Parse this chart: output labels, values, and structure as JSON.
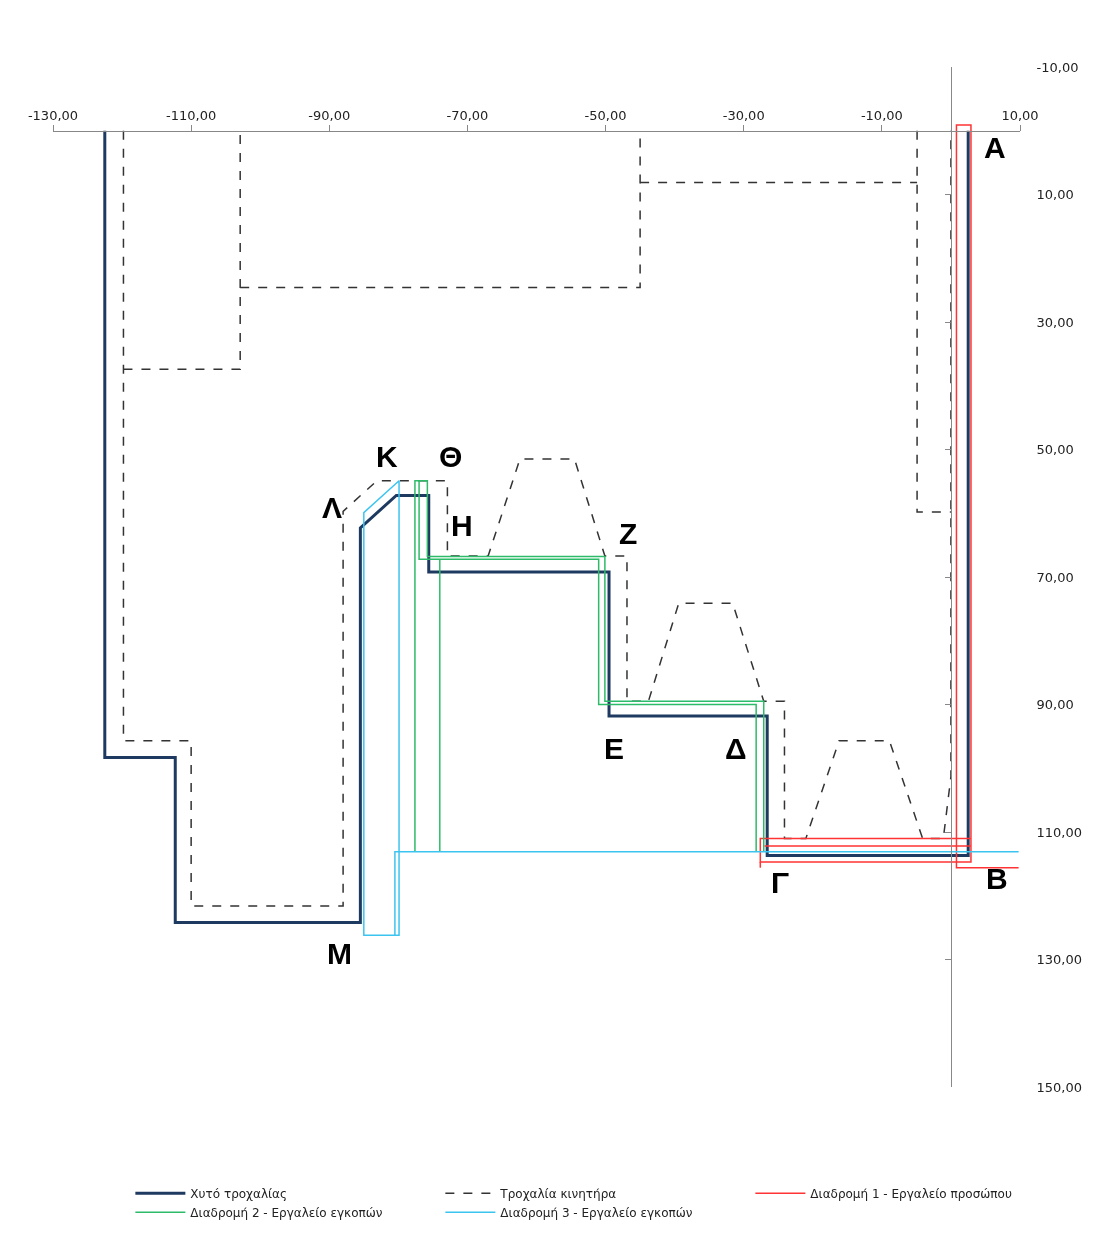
{
  "chart_data": {
    "type": "line",
    "marker": "none",
    "legend": "bottom",
    "xlim": [
      -130,
      10
    ],
    "ylim": [
      150,
      -10
    ],
    "xticks": [
      {
        "value": -130,
        "label": "-130,00"
      },
      {
        "value": -110,
        "label": "-110,00"
      },
      {
        "value": -90,
        "label": "-90,00"
      },
      {
        "value": -70,
        "label": "-70,00"
      },
      {
        "value": -50,
        "label": "-50,00"
      },
      {
        "value": -30,
        "label": "-30,00"
      },
      {
        "value": -10,
        "label": "-10,00"
      },
      {
        "value": 10,
        "label": "10,00"
      }
    ],
    "yticks": [
      {
        "value": -10,
        "label": "-10,00"
      },
      {
        "value": 10,
        "label": "10,00"
      },
      {
        "value": 30,
        "label": "30,00"
      },
      {
        "value": 50,
        "label": "50,00"
      },
      {
        "value": 70,
        "label": "70,00"
      },
      {
        "value": 90,
        "label": "90,00"
      },
      {
        "value": 110,
        "label": "110,00"
      },
      {
        "value": 130,
        "label": "130,00"
      },
      {
        "value": 150,
        "label": "150,00"
      }
    ],
    "series": [
      {
        "name": "Χυτό τροχαλίας",
        "color": "#1f3a60",
        "line_style": "solid",
        "x": [
          -122.5,
          -122.5,
          -112.3,
          -112.3,
          -85.5,
          -85.5,
          -80.3,
          -75.6,
          -75.6,
          -49.5,
          -49.5,
          -26.6,
          -26.6,
          2.5,
          2.5
        ],
        "values": [
          0,
          98.3,
          98.3,
          124.2,
          124.2,
          62.3,
          57.2,
          57.2,
          69.2,
          69.2,
          91.8,
          91.8,
          113.7,
          113.7,
          0
        ]
      },
      {
        "name": "Τροχαλία κινητήρα",
        "color": "#333333",
        "line_style": "dashed",
        "x": [
          -119.8,
          -119.8,
          -110,
          -110,
          -88,
          -88,
          -83.1,
          -72.9,
          -72.9,
          -67,
          -62.4,
          -54.5,
          -50.1,
          -46.9,
          -46.9,
          -43.8,
          -39.4,
          -31.6,
          -27.1,
          -24.1,
          -24.1,
          -21,
          -16.2,
          -8.9,
          -4.1,
          -1.1,
          0,
          0,
          null,
          -119.8,
          -102.9,
          -102.9,
          null,
          -102.9,
          -45,
          -45,
          null,
          -45,
          -4.9,
          null,
          -4.9,
          -4.9,
          0
        ],
        "values": [
          0,
          95.7,
          95.7,
          121.6,
          121.6,
          59.7,
          54.9,
          54.9,
          66.7,
          66.7,
          51.5,
          51.5,
          66.7,
          66.7,
          89.5,
          89.5,
          74.1,
          74.1,
          89.5,
          89.5,
          111,
          111,
          95.7,
          95.7,
          111,
          111,
          101.3,
          0,
          null,
          37.4,
          37.4,
          0,
          null,
          24.6,
          24.6,
          0,
          null,
          8.1,
          8.1,
          null,
          0,
          59.8,
          59.8
        ]
      },
      {
        "name": "Διαδρομή 1 - Εργαλείο προσώπου",
        "color": "#ff3333",
        "line_style": "solid",
        "x": [
          9.8,
          0.8,
          0.8,
          2.9,
          2.9,
          -27.6,
          -27.6,
          2.9,
          2.9,
          -27,
          null,
          -27.6,
          -27.6
        ],
        "values": [
          115.6,
          115.6,
          -0.9,
          -0.9,
          114.7,
          114.7,
          111,
          111,
          112.2,
          112.2,
          null,
          114.7,
          115.6
        ]
      },
      {
        "name": "Διαδρομή 2 - Εργαλείο εγκοπών",
        "color": "#2dbb6a",
        "line_style": "solid",
        "x": [
          -77.6,
          -77.6,
          -75.8,
          -75.8,
          -50.1,
          -50.1,
          -27.1,
          -27.1,
          null,
          -28.2,
          -28.2,
          -51,
          -51,
          -77,
          -77,
          null,
          -74,
          -74
        ],
        "values": [
          113.1,
          54.9,
          54.9,
          66.8,
          66.8,
          89.5,
          89.5,
          113.1,
          null,
          113.1,
          90,
          90,
          67.2,
          67.2,
          54.9,
          null,
          67.2,
          113.1
        ]
      },
      {
        "name": "Διαδρομή 3 - Εργαλείο εγκοπών",
        "color": "#3cc4f0",
        "line_style": "solid",
        "x": [
          9.8,
          -80.5,
          -80.5,
          -79.9,
          -79.9,
          -85,
          -85,
          -80.5
        ],
        "values": [
          113.1,
          113.1,
          126.2,
          126.2,
          54.9,
          59.9,
          126.2,
          126.2
        ]
      }
    ],
    "annotations": [
      {
        "text": "Α",
        "x": 2.5,
        "y": 0
      },
      {
        "text": "Β",
        "x": 2.5,
        "y": 113.7
      },
      {
        "text": "Γ",
        "x": -26.6,
        "y": 113.7
      },
      {
        "text": "Δ",
        "x": -26.6,
        "y": 91.8
      },
      {
        "text": "Ε",
        "x": -49.5,
        "y": 91.8
      },
      {
        "text": "Ζ",
        "x": -49.5,
        "y": 69.2
      },
      {
        "text": "Η",
        "x": -75.6,
        "y": 69.2
      },
      {
        "text": "Θ",
        "x": -75.6,
        "y": 57.2
      },
      {
        "text": "Κ",
        "x": -80.3,
        "y": 57.2
      },
      {
        "text": "Λ",
        "x": -85.5,
        "y": 62.3
      },
      {
        "text": "Μ",
        "x": -85.5,
        "y": 124.2
      }
    ]
  }
}
